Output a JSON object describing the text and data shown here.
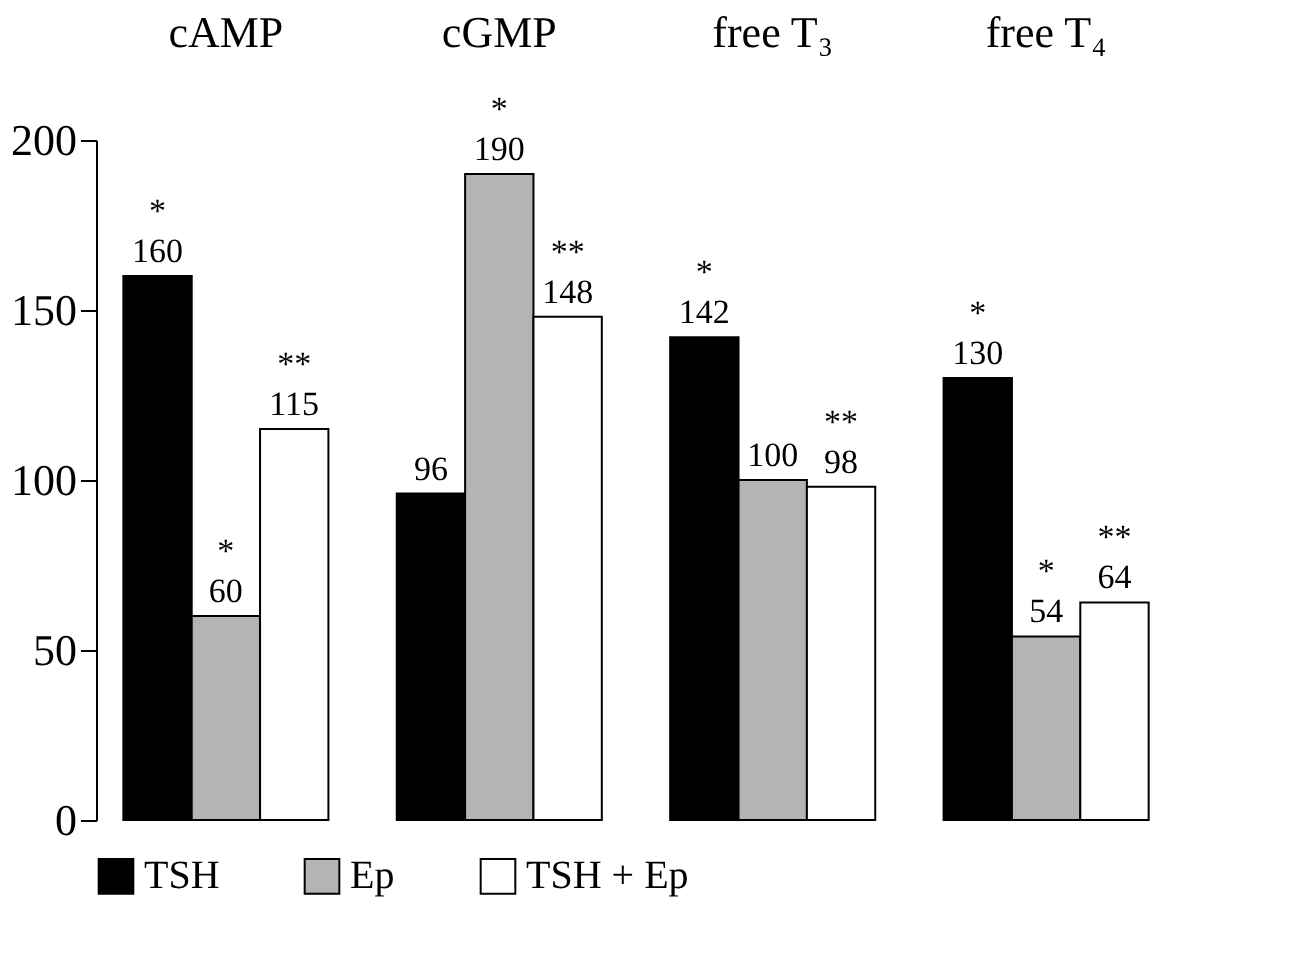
{
  "chart_data": {
    "type": "bar",
    "categories": [
      "cAMP",
      "cGMP",
      "free T₃",
      "free T₄"
    ],
    "series": [
      {
        "name": "TSH",
        "color": "#000000",
        "values": [
          160,
          96,
          142,
          130
        ],
        "value_labels": [
          "*\n160",
          "96",
          "*\n142",
          "*\n130"
        ]
      },
      {
        "name": "Ep",
        "color": "#b4b4b4",
        "values": [
          60,
          190,
          100,
          54
        ],
        "value_labels": [
          "*\n60",
          "*\n190",
          "100",
          "*\n54"
        ]
      },
      {
        "name": "TSH + Ep",
        "color": "#ffffff",
        "values": [
          115,
          148,
          98,
          64
        ],
        "value_labels": [
          "**\n115",
          "**\n148",
          "**\n98",
          "**\n64"
        ]
      }
    ],
    "ylim": [
      0,
      200
    ],
    "yticks": [
      0,
      50,
      100,
      150,
      200
    ],
    "grid": false,
    "legend": "bottom"
  }
}
